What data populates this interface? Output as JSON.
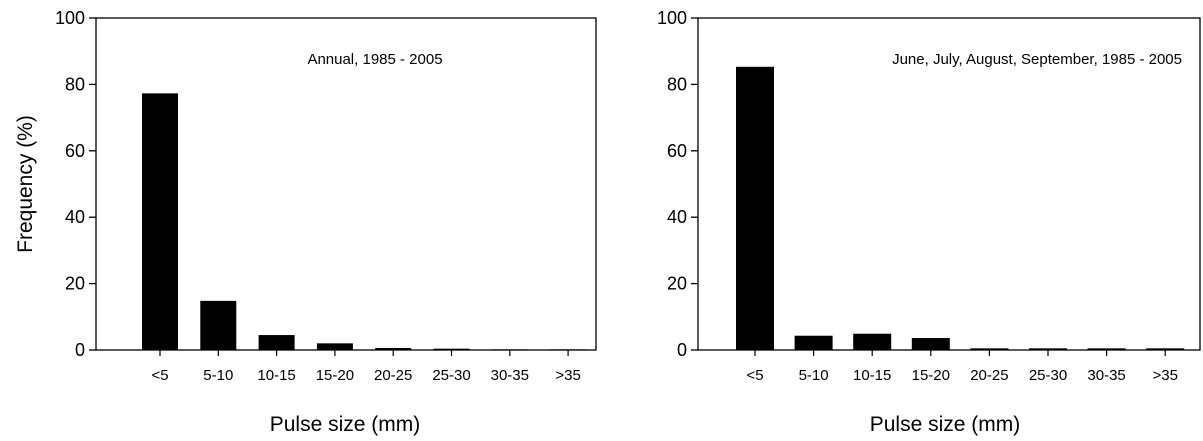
{
  "chart_data": [
    {
      "type": "bar",
      "title": "Annual, 1985 - 2005",
      "xlabel": "Pulse size (mm)",
      "ylabel": "Frequency (%)",
      "ylim": [
        0,
        100
      ],
      "yticks": [
        "0",
        "20",
        "40",
        "60",
        "80",
        "100"
      ],
      "categories": [
        "<5",
        "5-10",
        "10-15",
        "15-20",
        "20-25",
        "25-30",
        "30-35",
        ">35"
      ],
      "values": [
        77.3,
        14.8,
        4.5,
        2.0,
        0.6,
        0.4,
        0.2,
        0.2
      ],
      "bar_color": "#000000"
    },
    {
      "type": "bar",
      "title": "June, July, August, September, 1985 - 2005",
      "xlabel": "Pulse size (mm)",
      "ylabel": "",
      "ylim": [
        0,
        100
      ],
      "yticks": [
        "0",
        "20",
        "40",
        "60",
        "80",
        "100"
      ],
      "categories": [
        "<5",
        "5-10",
        "10-15",
        "15-20",
        "20-25",
        "25-30",
        "30-35",
        ">35"
      ],
      "values": [
        85.3,
        4.3,
        4.9,
        3.6,
        0.5,
        0.5,
        0.5,
        0.5
      ],
      "bar_color": "#000000"
    }
  ]
}
